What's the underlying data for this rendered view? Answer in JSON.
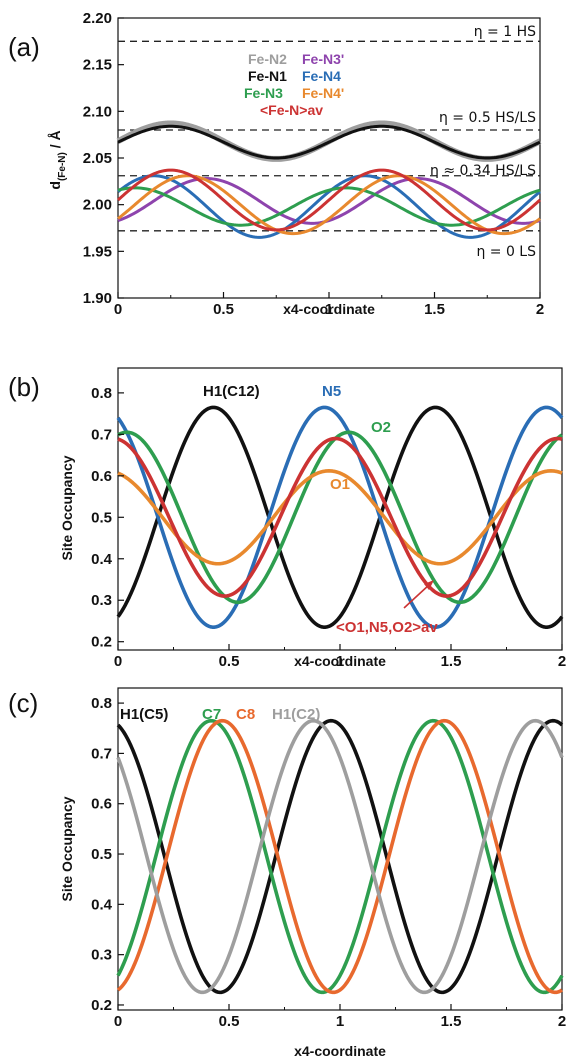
{
  "panels": [
    {
      "label": "(a)",
      "chart_data": {
        "type": "line",
        "xlabel": "x4-coordinate",
        "ylabel": "d(Fe-N) / Å",
        "ylabel_main": "d",
        "ylabel_sub": "(Fe-N)",
        "ylabel_unit": " / Å",
        "xlim": [
          0,
          2
        ],
        "ylim": [
          1.9,
          2.2
        ],
        "xticks": [
          "0",
          "0.5",
          "1",
          "1.5",
          "2"
        ],
        "yticks": [
          "1.90",
          "1.95",
          "2.00",
          "2.05",
          "2.10",
          "2.15",
          "2.20"
        ],
        "grid": false,
        "legend_position": "top-center",
        "legend": [
          {
            "name": "Fe-N2",
            "color": "#9e9e9e"
          },
          {
            "name": "Fe-N3'",
            "color": "#8e44ad"
          },
          {
            "name": "Fe-N1",
            "color": "#111111"
          },
          {
            "name": "Fe-N4",
            "color": "#2a6db5"
          },
          {
            "name": "Fe-N3",
            "color": "#2e9e4f"
          },
          {
            "name": "Fe-N4'",
            "color": "#e8892e"
          },
          {
            "name": "<Fe-N>av",
            "color": "#cc3333"
          }
        ],
        "reference_lines": [
          {
            "y": 2.175,
            "label": "η = 1 HS"
          },
          {
            "y": 2.08,
            "label": "η = 0.5 HS/LS"
          },
          {
            "y": 2.031,
            "label": "η ≈ 0.34 HS/LS"
          },
          {
            "y": 1.972,
            "label": "η = 0 LS"
          }
        ],
        "series": [
          {
            "name": "Fe-N2",
            "color": "#9e9e9e",
            "mean": 2.068,
            "amplitude": 0.019,
            "phase": 0.25,
            "width": 6
          },
          {
            "name": "Fe-N1",
            "color": "#111111",
            "mean": 2.067,
            "amplitude": 0.017,
            "phase": 0.25,
            "width": 3
          },
          {
            "name": "Fe-N3'",
            "color": "#8e44ad",
            "mean": 2.004,
            "amplitude": 0.024,
            "phase": 0.42,
            "width": 3
          },
          {
            "name": "Fe-N4",
            "color": "#2a6db5",
            "mean": 1.998,
            "amplitude": 0.033,
            "phase": 0.17,
            "width": 3
          },
          {
            "name": "Fe-N3",
            "color": "#2e9e4f",
            "mean": 1.998,
            "amplitude": 0.02,
            "phase": 0.08,
            "width": 3
          },
          {
            "name": "Fe-N4'",
            "color": "#e8892e",
            "mean": 2.0,
            "amplitude": 0.031,
            "phase": 0.33,
            "width": 3
          },
          {
            "name": "<Fe-N>av",
            "color": "#cc3333",
            "mean": 2.005,
            "amplitude": 0.032,
            "phase": 0.25,
            "width": 3
          }
        ]
      }
    },
    {
      "label": "(b)",
      "chart_data": {
        "type": "line",
        "xlabel": "x4-coordinate",
        "ylabel": "Site Occupancy",
        "xlim": [
          0,
          2
        ],
        "ylim": [
          0.18,
          0.86
        ],
        "xticks": [
          "0",
          "0.5",
          "1",
          "1.5",
          "2"
        ],
        "ytick_values": [
          0.2,
          0.3,
          0.4,
          0.5,
          0.6,
          0.7,
          0.8
        ],
        "yticks": [
          "0.2",
          "0.3",
          "0.4",
          "0.5",
          "0.6",
          "0.7",
          "0.8"
        ],
        "grid": false,
        "annotation": "<O1,N5,O2>av",
        "series": [
          {
            "name": "H1(C12)",
            "color": "#111111",
            "mean": 0.5,
            "amplitude": 0.265,
            "phase": 0.43
          },
          {
            "name": "N5",
            "color": "#2a6db5",
            "mean": 0.5,
            "amplitude": 0.265,
            "phase": 0.93
          },
          {
            "name": "O2",
            "color": "#2e9e4f",
            "mean": 0.5,
            "amplitude": 0.205,
            "phase": 0.04
          },
          {
            "name": "O1",
            "color": "#e8892e",
            "mean": 0.5,
            "amplitude": 0.112,
            "phase": 0.95
          },
          {
            "name": "<O1,N5,O2>av",
            "color": "#cc3333",
            "mean": 0.5,
            "amplitude": 0.19,
            "phase": 0.98
          }
        ]
      }
    },
    {
      "label": "(c)",
      "chart_data": {
        "type": "line",
        "xlabel": "x4-coordinate",
        "ylabel": "Site Occupancy",
        "xlim": [
          0,
          2
        ],
        "ylim": [
          0.19,
          0.83
        ],
        "xticks": [
          "0",
          "0.5",
          "1",
          "1.5",
          "2"
        ],
        "ytick_values": [
          0.2,
          0.3,
          0.4,
          0.5,
          0.6,
          0.7,
          0.8
        ],
        "yticks": [
          "0.2",
          "0.3",
          "0.4",
          "0.5",
          "0.6",
          "0.7",
          "0.8"
        ],
        "grid": false,
        "series": [
          {
            "name": "H1(C5)",
            "color": "#111111",
            "mean": 0.495,
            "amplitude": 0.27,
            "phase": 0.96
          },
          {
            "name": "C7",
            "color": "#2e9e4f",
            "mean": 0.495,
            "amplitude": 0.27,
            "phase": 0.42
          },
          {
            "name": "C8",
            "color": "#e8692e",
            "mean": 0.495,
            "amplitude": 0.27,
            "phase": 0.47
          },
          {
            "name": "H1(C2)",
            "color": "#9e9e9e",
            "mean": 0.495,
            "amplitude": 0.27,
            "phase": 0.88
          }
        ]
      }
    }
  ]
}
